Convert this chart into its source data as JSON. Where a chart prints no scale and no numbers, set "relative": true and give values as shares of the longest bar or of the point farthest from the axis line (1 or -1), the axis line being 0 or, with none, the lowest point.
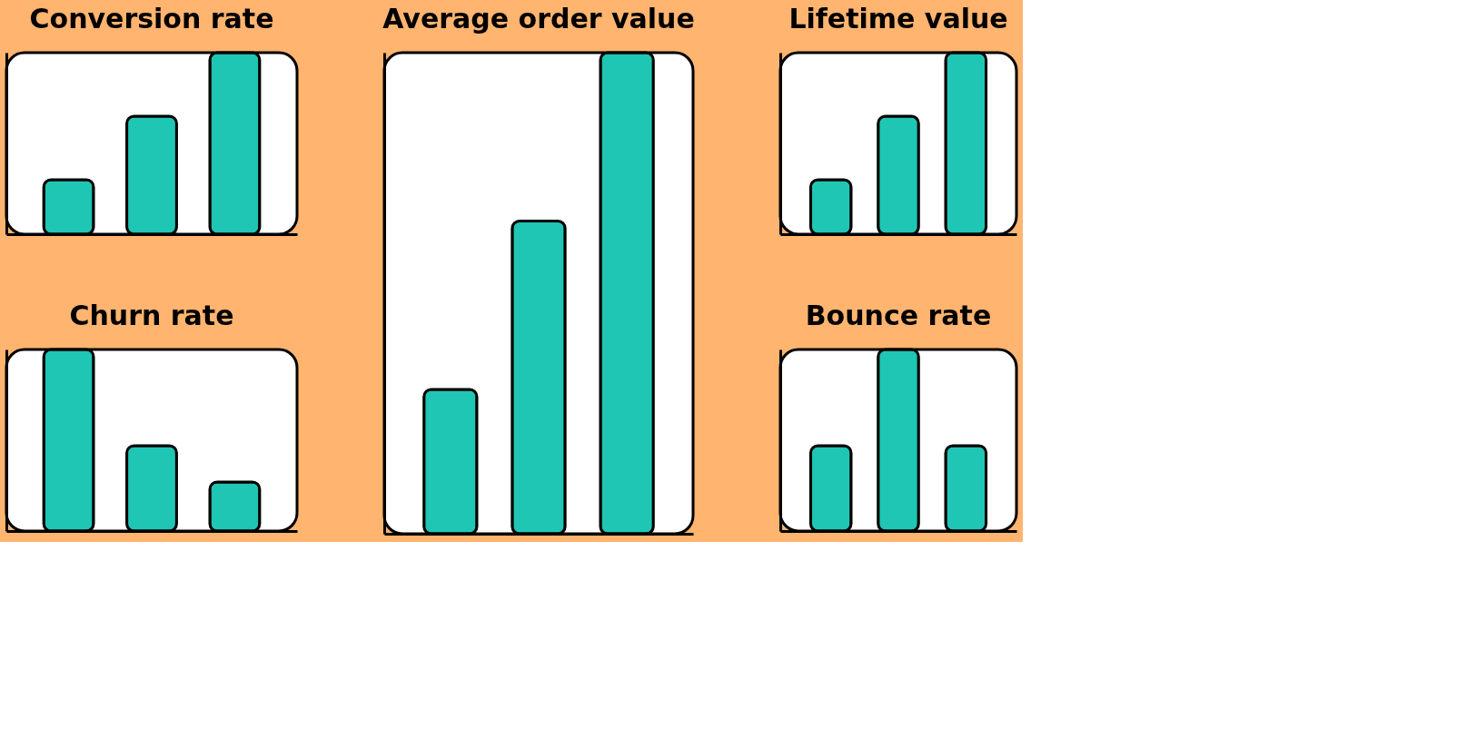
{
  "chart_data": [
    {
      "type": "bar",
      "title": "Conversion rate",
      "categories": [
        null,
        null,
        null
      ],
      "values": [
        0.3,
        0.65,
        1
      ],
      "relative": true,
      "color": "#1fc6b4"
    },
    {
      "type": "bar",
      "title": "Average order value",
      "categories": [
        null,
        null,
        null
      ],
      "values": [
        0.3,
        0.65,
        1
      ],
      "relative": true,
      "color": "#1fc6b4"
    },
    {
      "type": "bar",
      "title": "Lifetime value",
      "categories": [
        null,
        null,
        null
      ],
      "values": [
        0.3,
        0.65,
        1
      ],
      "relative": true,
      "color": "#1fc6b4"
    },
    {
      "type": "bar",
      "title": "Churn rate",
      "categories": [
        null,
        null,
        null
      ],
      "values": [
        1,
        0.47,
        0.27
      ],
      "relative": true,
      "color": "#1fc6b4"
    },
    {
      "type": "bar",
      "title": "Bounce rate",
      "categories": [
        null,
        null,
        null
      ],
      "values": [
        0.47,
        1,
        0.47
      ],
      "relative": true,
      "color": "#1fc6b4"
    }
  ]
}
